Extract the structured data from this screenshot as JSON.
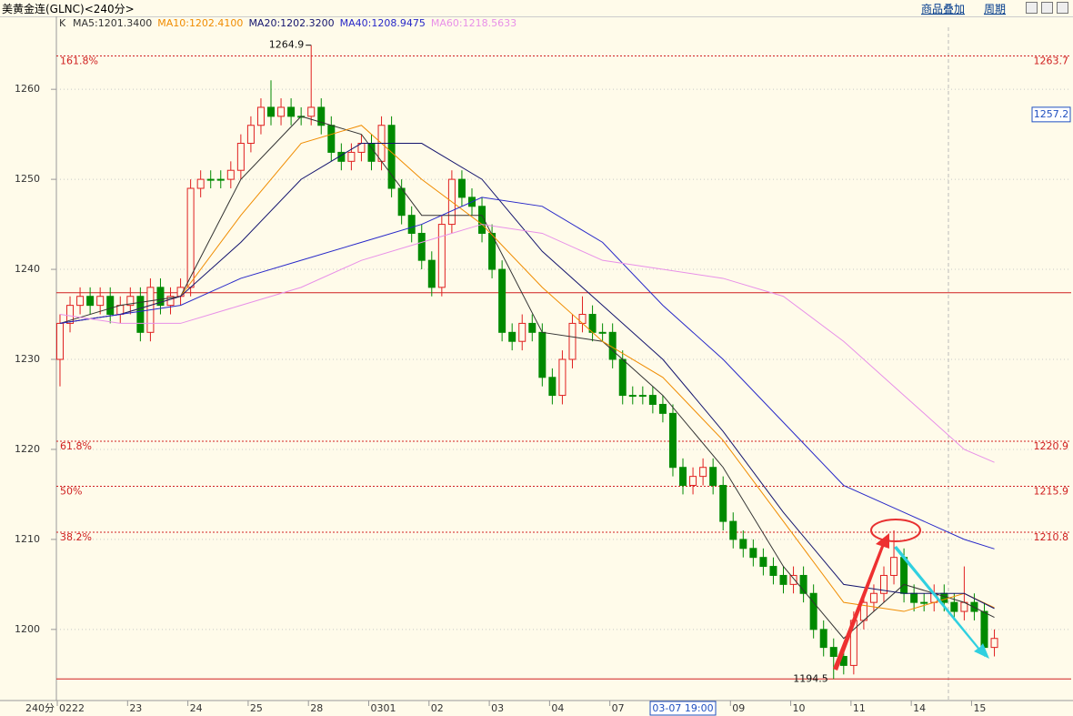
{
  "header": {
    "title": "美黄金连(GLNC)<240分>",
    "buttons": [
      "商品叠加",
      "周期"
    ],
    "period": "240分",
    "indicator": "K"
  },
  "chart_data": {
    "type": "candlestick",
    "open": [
      1230,
      1234,
      1236,
      1237,
      1236,
      1237,
      1235,
      1236,
      1237,
      1233,
      1238,
      1236,
      1237,
      1238,
      1249,
      1250,
      1250,
      1250,
      1251,
      1254,
      1256,
      1258,
      1257,
      1258,
      1257,
      1257,
      1258,
      1256,
      1253,
      1252,
      1253,
      1254,
      1252,
      1256,
      1249,
      1246,
      1244,
      1241,
      1238,
      1245,
      1250,
      1248,
      1247,
      1244,
      1240,
      1233,
      1232,
      1234,
      1233,
      1228,
      1226,
      1230,
      1234,
      1235,
      1233,
      1233,
      1230,
      1226,
      1226,
      1226,
      1225,
      1224,
      1218,
      1216,
      1217,
      1218,
      1216,
      1212,
      1210,
      1209,
      1208,
      1207,
      1206,
      1205,
      1206,
      1204,
      1200,
      1198,
      1197,
      1196,
      1201,
      1203,
      1204,
      1206,
      1208,
      1204,
      1203,
      1203,
      1204,
      1203,
      1202,
      1203,
      1202,
      1198
    ],
    "high": [
      1235,
      1237,
      1238,
      1238,
      1238,
      1238,
      1237,
      1238,
      1238,
      1239,
      1239,
      1238,
      1239,
      1250,
      1251,
      1251,
      1251,
      1252,
      1255,
      1257,
      1259,
      1261,
      1259,
      1259,
      1258,
      1264.9,
      1259,
      1257,
      1254,
      1254,
      1255,
      1255,
      1257,
      1257,
      1250,
      1247,
      1245,
      1242,
      1246,
      1251,
      1251,
      1249,
      1248,
      1245,
      1241,
      1234,
      1235,
      1235,
      1234,
      1229,
      1231,
      1235,
      1237,
      1236,
      1234,
      1234,
      1231,
      1227,
      1227,
      1227,
      1226,
      1225,
      1219,
      1218,
      1219,
      1219,
      1217,
      1213,
      1211,
      1210,
      1209,
      1208,
      1207,
      1207,
      1207,
      1205,
      1201,
      1199,
      1198,
      1202,
      1204,
      1205,
      1207,
      1211,
      1209,
      1205,
      1204,
      1205,
      1205,
      1204,
      1207,
      1204,
      1203,
      1200
    ],
    "low": [
      1227,
      1233,
      1235,
      1235,
      1235,
      1234,
      1234,
      1235,
      1232,
      1232,
      1235,
      1235,
      1236,
      1237,
      1248,
      1249,
      1249,
      1249,
      1250,
      1253,
      1255,
      1256,
      1256,
      1256,
      1256,
      1256,
      1255,
      1252,
      1251,
      1251,
      1252,
      1251,
      1251,
      1248,
      1245,
      1243,
      1240,
      1237,
      1237,
      1244,
      1247,
      1246,
      1243,
      1239,
      1232,
      1231,
      1231,
      1232,
      1227,
      1225,
      1225,
      1229,
      1233,
      1232,
      1232,
      1229,
      1225,
      1225,
      1225,
      1224,
      1223,
      1217,
      1215,
      1215,
      1216,
      1215,
      1211,
      1209,
      1208,
      1207,
      1206,
      1205,
      1204,
      1204,
      1203,
      1199,
      1197,
      1194.5,
      1195,
      1195,
      1200,
      1202,
      1203,
      1205,
      1203,
      1202,
      1202,
      1202,
      1202,
      1201,
      1201,
      1201,
      1197,
      1197
    ],
    "close": [
      1234,
      1236,
      1237,
      1236,
      1237,
      1235,
      1236,
      1237,
      1233,
      1238,
      1236,
      1237,
      1238,
      1249,
      1250,
      1250,
      1250,
      1251,
      1254,
      1256,
      1258,
      1257,
      1258,
      1257,
      1257,
      1258,
      1256,
      1253,
      1252,
      1253,
      1254,
      1252,
      1256,
      1249,
      1246,
      1244,
      1241,
      1238,
      1245,
      1250,
      1248,
      1247,
      1244,
      1240,
      1233,
      1232,
      1234,
      1233,
      1228,
      1226,
      1230,
      1234,
      1235,
      1233,
      1233,
      1230,
      1226,
      1226,
      1226,
      1225,
      1224,
      1218,
      1216,
      1217,
      1218,
      1216,
      1212,
      1210,
      1209,
      1208,
      1207,
      1206,
      1205,
      1206,
      1204,
      1200,
      1198,
      1197,
      1196,
      1201,
      1203,
      1204,
      1206,
      1208,
      1204,
      1203,
      1203,
      1204,
      1203,
      1202,
      1203,
      1202,
      1198,
      1199
    ],
    "up_color": "#e02020",
    "down_color": "#008a00",
    "ma_x": [
      0,
      6,
      12,
      18,
      24,
      30,
      36,
      42,
      48,
      54,
      60,
      66,
      72,
      78,
      84,
      90,
      93
    ],
    "series": [
      {
        "name": "MA5:1201.3400",
        "color": "#333333",
        "values": [
          1234,
          1236,
          1237,
          1250,
          1257,
          1255,
          1246,
          1246,
          1233,
          1232,
          1226,
          1218,
          1207,
          1199,
          1205,
          1203,
          1201.34
        ]
      },
      {
        "name": "MA10:1202.4100",
        "color": "#f08c00",
        "values": [
          1234,
          1235,
          1237,
          1246,
          1254,
          1256,
          1250,
          1245,
          1238,
          1232,
          1228,
          1221,
          1212,
          1203,
          1202,
          1204,
          1202.41
        ]
      },
      {
        "name": "MA20:1202.3200",
        "color": "#14146e",
        "values": [
          1234,
          1235,
          1237,
          1243,
          1250,
          1254,
          1254,
          1250,
          1242,
          1236,
          1230,
          1222,
          1213,
          1205,
          1204,
          1204,
          1202.32
        ]
      },
      {
        "name": "MA40:1208.9475",
        "color": "#2828c8",
        "values": [
          1234,
          1235,
          1236,
          1239,
          1241,
          1243,
          1245,
          1248,
          1247,
          1243,
          1236,
          1230,
          1223,
          1216,
          1213,
          1210,
          1208.9475
        ]
      },
      {
        "name": "MA60:1218.5633",
        "color": "#e890e8",
        "values": [
          1235,
          1234,
          1234,
          1236,
          1238,
          1241,
          1243,
          1245,
          1244,
          1241,
          1240,
          1239,
          1237,
          1232,
          1226,
          1220,
          1218.5633
        ]
      }
    ],
    "fib_levels": [
      {
        "ratio": "161.8%",
        "value": 1263.7
      },
      {
        "ratio": "61.8%",
        "value": 1220.9
      },
      {
        "ratio": "50%",
        "value": 1215.9
      },
      {
        "ratio": "38.2%",
        "value": 1210.8
      }
    ],
    "hlines": [
      1237.4,
      1194.5
    ],
    "ylim": [
      1192.1,
      1267.9
    ],
    "yticks": [
      1200,
      1210,
      1220,
      1230,
      1240,
      1250,
      1260
    ],
    "xlim": [
      -0.36,
      96.3
    ],
    "xticks": [
      {
        "value": 0,
        "label": "0222"
      },
      {
        "value": 7,
        "label": "23"
      },
      {
        "value": 13,
        "label": "24"
      },
      {
        "value": 19,
        "label": "25"
      },
      {
        "value": 25,
        "label": "28"
      },
      {
        "value": 31,
        "label": "0301"
      },
      {
        "value": 37,
        "label": "02"
      },
      {
        "value": 43,
        "label": "03"
      },
      {
        "value": 49,
        "label": "04"
      },
      {
        "value": 55,
        "label": "07"
      },
      {
        "value": 67,
        "label": "09"
      },
      {
        "value": 73,
        "label": "10"
      },
      {
        "value": 79,
        "label": "11"
      },
      {
        "value": 85,
        "label": "14"
      },
      {
        "value": 91,
        "label": "15"
      }
    ],
    "cursor_time": {
      "value": 62,
      "label": "03-07 19:00"
    },
    "cursor_price": 1257.2,
    "grid": true
  }
}
